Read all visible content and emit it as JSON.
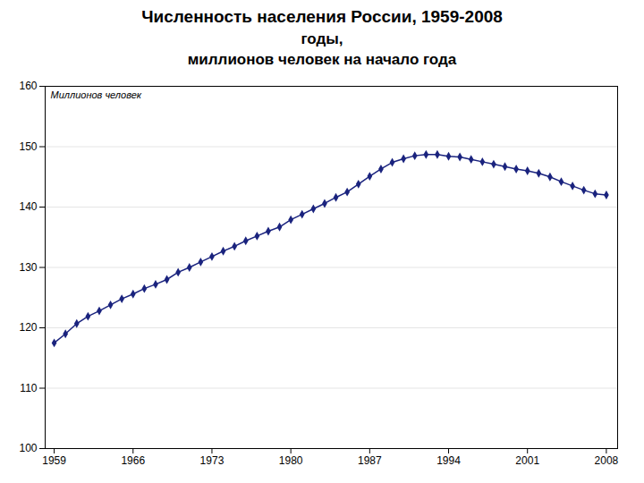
{
  "chart_data": {
    "type": "line",
    "title": "Численность населения России, 1959-2008",
    "subtitle": [
      "годы,",
      "миллионов человек на начало года"
    ],
    "y_label": "Миллионов человек",
    "x": [
      1959,
      1960,
      1961,
      1962,
      1963,
      1964,
      1965,
      1966,
      1967,
      1968,
      1969,
      1970,
      1971,
      1972,
      1973,
      1974,
      1975,
      1976,
      1977,
      1978,
      1979,
      1980,
      1981,
      1982,
      1983,
      1984,
      1985,
      1986,
      1987,
      1988,
      1989,
      1990,
      1991,
      1992,
      1993,
      1994,
      1995,
      1996,
      1997,
      1998,
      1999,
      2000,
      2001,
      2002,
      2003,
      2004,
      2005,
      2006,
      2007,
      2008
    ],
    "values": [
      117.5,
      119.0,
      120.7,
      121.9,
      122.8,
      123.8,
      124.8,
      125.6,
      126.5,
      127.2,
      128.0,
      129.2,
      130.0,
      130.9,
      131.8,
      132.7,
      133.5,
      134.4,
      135.2,
      136.0,
      136.7,
      137.9,
      138.8,
      139.7,
      140.6,
      141.6,
      142.5,
      143.8,
      145.1,
      146.3,
      147.4,
      148.0,
      148.5,
      148.7,
      148.7,
      148.4,
      148.3,
      147.9,
      147.5,
      147.1,
      146.7,
      146.3,
      146.0,
      145.6,
      145.0,
      144.2,
      143.5,
      142.8,
      142.2,
      142.0
    ],
    "color": "#1a237e",
    "marker": "diamond",
    "xlim": [
      1958.2,
      2009
    ],
    "xticks": [
      1959,
      1966,
      1973,
      1980,
      1987,
      1994,
      2001,
      2008
    ],
    "ylim": [
      100,
      160
    ],
    "yticks": [
      100,
      110,
      120,
      130,
      140,
      150,
      160
    ],
    "grid": true
  }
}
